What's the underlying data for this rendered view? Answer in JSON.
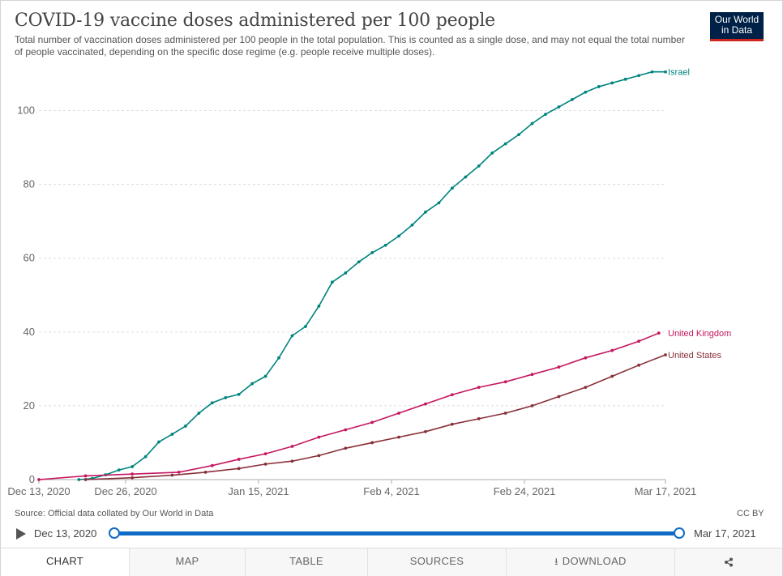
{
  "header": {
    "title": "COVID-19 vaccine doses administered per 100 people",
    "subtitle": "Total number of vaccination doses administered per 100 people in the total population. This is counted as a single dose, and may not equal the total number of people vaccinated, depending on the specific dose regime (e.g. people receive multiple doses).",
    "logo_line1": "Our World",
    "logo_line2": "in Data"
  },
  "chart_data": {
    "type": "line",
    "x_axis": {
      "min": "2020-12-13",
      "max": "2021-03-17",
      "ticks": [
        "Dec 13, 2020",
        "Dec 26, 2020",
        "Jan 15, 2021",
        "Feb 4, 2021",
        "Feb 24, 2021",
        "Mar 17, 2021"
      ]
    },
    "y_axis": {
      "min": 0,
      "max": 110,
      "ticks": [
        0,
        20,
        40,
        60,
        80,
        100
      ]
    },
    "grid": "horizontal dashed",
    "legend": "line-end labels",
    "series": [
      {
        "name": "Israel",
        "color": "#00847e",
        "points": [
          [
            "2020-12-19",
            0.0
          ],
          [
            "2020-12-21",
            0.3
          ],
          [
            "2020-12-23",
            1.3
          ],
          [
            "2020-12-25",
            2.6
          ],
          [
            "2020-12-27",
            3.5
          ],
          [
            "2020-12-29",
            6.2
          ],
          [
            "2020-12-31",
            10.2
          ],
          [
            "2021-01-02",
            12.3
          ],
          [
            "2021-01-04",
            14.5
          ],
          [
            "2021-01-06",
            18.0
          ],
          [
            "2021-01-08",
            20.8
          ],
          [
            "2021-01-10",
            22.2
          ],
          [
            "2021-01-12",
            23.1
          ],
          [
            "2021-01-14",
            26.0
          ],
          [
            "2021-01-16",
            28.0
          ],
          [
            "2021-01-18",
            33.0
          ],
          [
            "2021-01-20",
            39.0
          ],
          [
            "2021-01-22",
            41.5
          ],
          [
            "2021-01-24",
            47.0
          ],
          [
            "2021-01-26",
            53.5
          ],
          [
            "2021-01-28",
            56.0
          ],
          [
            "2021-01-30",
            59.0
          ],
          [
            "2021-02-01",
            61.5
          ],
          [
            "2021-02-03",
            63.5
          ],
          [
            "2021-02-05",
            66.0
          ],
          [
            "2021-02-07",
            69.0
          ],
          [
            "2021-02-09",
            72.5
          ],
          [
            "2021-02-11",
            75.0
          ],
          [
            "2021-02-13",
            79.0
          ],
          [
            "2021-02-15",
            82.0
          ],
          [
            "2021-02-17",
            85.0
          ],
          [
            "2021-02-19",
            88.5
          ],
          [
            "2021-02-21",
            91.0
          ],
          [
            "2021-02-23",
            93.5
          ],
          [
            "2021-02-25",
            96.5
          ],
          [
            "2021-02-27",
            99.0
          ],
          [
            "2021-03-01",
            101.0
          ],
          [
            "2021-03-03",
            103.0
          ],
          [
            "2021-03-05",
            105.0
          ],
          [
            "2021-03-07",
            106.5
          ],
          [
            "2021-03-09",
            107.5
          ],
          [
            "2021-03-11",
            108.5
          ],
          [
            "2021-03-13",
            109.5
          ],
          [
            "2021-03-15",
            110.5
          ],
          [
            "2021-03-17",
            110.5
          ]
        ]
      },
      {
        "name": "United Kingdom",
        "color": "#c5175f",
        "points": [
          [
            "2020-12-13",
            0.0
          ],
          [
            "2020-12-20",
            1.0
          ],
          [
            "2020-12-27",
            1.5
          ],
          [
            "2021-01-03",
            2.0
          ],
          [
            "2021-01-08",
            3.8
          ],
          [
            "2021-01-12",
            5.5
          ],
          [
            "2021-01-16",
            7.0
          ],
          [
            "2021-01-20",
            9.0
          ],
          [
            "2021-01-24",
            11.5
          ],
          [
            "2021-01-28",
            13.5
          ],
          [
            "2021-02-01",
            15.5
          ],
          [
            "2021-02-05",
            18.0
          ],
          [
            "2021-02-09",
            20.5
          ],
          [
            "2021-02-13",
            23.0
          ],
          [
            "2021-02-17",
            25.0
          ],
          [
            "2021-02-21",
            26.5
          ],
          [
            "2021-02-25",
            28.5
          ],
          [
            "2021-03-01",
            30.5
          ],
          [
            "2021-03-05",
            33.0
          ],
          [
            "2021-03-09",
            35.0
          ],
          [
            "2021-03-13",
            37.5
          ],
          [
            "2021-03-16",
            39.7
          ]
        ]
      },
      {
        "name": "United States",
        "color": "#883039",
        "points": [
          [
            "2020-12-20",
            0.0
          ],
          [
            "2020-12-27",
            0.5
          ],
          [
            "2021-01-02",
            1.2
          ],
          [
            "2021-01-07",
            2.0
          ],
          [
            "2021-01-12",
            3.0
          ],
          [
            "2021-01-16",
            4.2
          ],
          [
            "2021-01-20",
            5.0
          ],
          [
            "2021-01-24",
            6.5
          ],
          [
            "2021-01-28",
            8.5
          ],
          [
            "2021-02-01",
            10.0
          ],
          [
            "2021-02-05",
            11.5
          ],
          [
            "2021-02-09",
            13.0
          ],
          [
            "2021-02-13",
            15.0
          ],
          [
            "2021-02-17",
            16.5
          ],
          [
            "2021-02-21",
            18.0
          ],
          [
            "2021-02-25",
            20.0
          ],
          [
            "2021-03-01",
            22.5
          ],
          [
            "2021-03-05",
            25.0
          ],
          [
            "2021-03-09",
            28.0
          ],
          [
            "2021-03-13",
            31.0
          ],
          [
            "2021-03-17",
            33.8
          ]
        ]
      }
    ]
  },
  "footer": {
    "source": "Source: Official data collated by Our World in Data",
    "license": "CC BY"
  },
  "timeline": {
    "start_label": "Dec 13, 2020",
    "end_label": "Mar 17, 2021"
  },
  "tabs": [
    {
      "label": "CHART",
      "active": true
    },
    {
      "label": "MAP",
      "active": false
    },
    {
      "label": "TABLE",
      "active": false
    },
    {
      "label": "SOURCES",
      "active": false
    },
    {
      "label": "DOWNLOAD",
      "active": false
    }
  ],
  "icons": {
    "download": "download-icon",
    "share": "share-icon",
    "play": "play-icon"
  }
}
